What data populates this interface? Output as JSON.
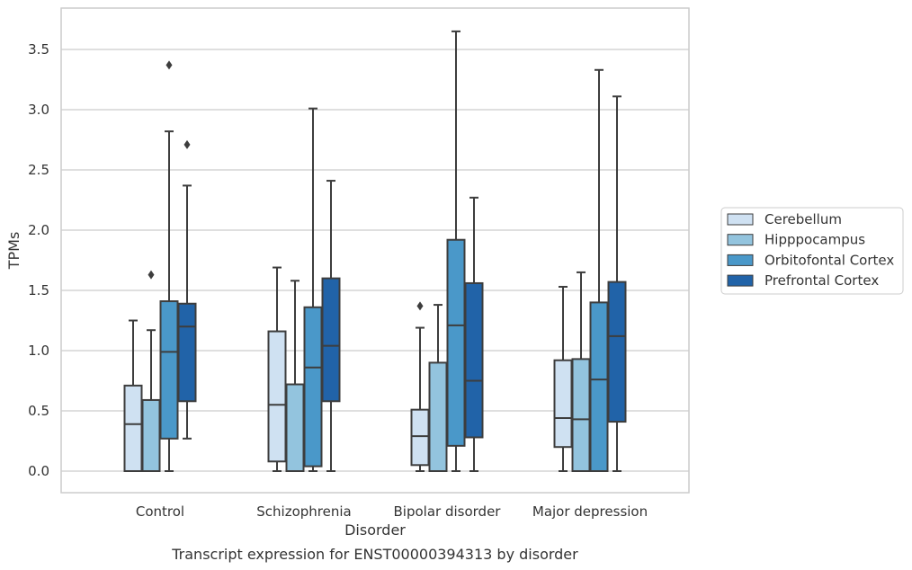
{
  "chart_data": {
    "type": "box",
    "caption": "Transcript expression for ENST00000394313 by disorder",
    "xlabel": "Disorder",
    "ylabel": "TPMs",
    "ylim": [
      -0.17,
      3.87
    ],
    "yticks": [
      0.0,
      0.5,
      1.0,
      1.5,
      2.0,
      2.5,
      3.0,
      3.5
    ],
    "ytick_labels": [
      "0.0",
      "0.5",
      "1.0",
      "1.5",
      "2.0",
      "2.5",
      "3.0",
      "3.5"
    ],
    "grid": "horizontal",
    "legend_position": "right",
    "categories": [
      "Control",
      "Schizophrenia",
      "Bipolar disorder",
      "Major depression"
    ],
    "series": [
      {
        "name": "Cerebellum",
        "color": "#cfe1f2",
        "boxes": [
          {
            "whisker_low": 0.0,
            "q1": 0.0,
            "median": 0.39,
            "q3": 0.71,
            "whisker_high": 1.25,
            "outliers": []
          },
          {
            "whisker_low": 0.0,
            "q1": 0.08,
            "median": 0.55,
            "q3": 1.16,
            "whisker_high": 1.69,
            "outliers": []
          },
          {
            "whisker_low": 0.0,
            "q1": 0.05,
            "median": 0.29,
            "q3": 0.51,
            "whisker_high": 1.19,
            "outliers": [
              1.37
            ]
          },
          {
            "whisker_low": 0.0,
            "q1": 0.2,
            "median": 0.44,
            "q3": 0.92,
            "whisker_high": 1.53,
            "outliers": []
          }
        ]
      },
      {
        "name": "Hipppocampus",
        "color": "#93c4de",
        "boxes": [
          {
            "whisker_low": 0.0,
            "q1": 0.0,
            "median": 0.0,
            "q3": 0.59,
            "whisker_high": 1.17,
            "outliers": [
              1.63
            ]
          },
          {
            "whisker_low": 0.0,
            "q1": 0.0,
            "median": 0.0,
            "q3": 0.72,
            "whisker_high": 1.58,
            "outliers": []
          },
          {
            "whisker_low": 0.0,
            "q1": 0.0,
            "median": 0.0,
            "q3": 0.9,
            "whisker_high": 1.38,
            "outliers": []
          },
          {
            "whisker_low": 0.0,
            "q1": 0.0,
            "median": 0.43,
            "q3": 0.93,
            "whisker_high": 1.65,
            "outliers": []
          }
        ]
      },
      {
        "name": "Orbitofontal Cortex",
        "color": "#4a98c9",
        "boxes": [
          {
            "whisker_low": 0.0,
            "q1": 0.27,
            "median": 0.99,
            "q3": 1.41,
            "whisker_high": 2.82,
            "outliers": [
              3.37
            ]
          },
          {
            "whisker_low": 0.0,
            "q1": 0.04,
            "median": 0.86,
            "q3": 1.36,
            "whisker_high": 3.01,
            "outliers": []
          },
          {
            "whisker_low": 0.0,
            "q1": 0.21,
            "median": 1.21,
            "q3": 1.92,
            "whisker_high": 3.65,
            "outliers": []
          },
          {
            "whisker_low": 0.0,
            "q1": 0.0,
            "median": 0.76,
            "q3": 1.4,
            "whisker_high": 3.33,
            "outliers": []
          }
        ]
      },
      {
        "name": "Prefrontal Cortex",
        "color": "#2163a8",
        "boxes": [
          {
            "whisker_low": 0.27,
            "q1": 0.58,
            "median": 1.2,
            "q3": 1.39,
            "whisker_high": 2.37,
            "outliers": [
              2.71
            ]
          },
          {
            "whisker_low": 0.0,
            "q1": 0.58,
            "median": 1.04,
            "q3": 1.6,
            "whisker_high": 2.41,
            "outliers": []
          },
          {
            "whisker_low": 0.0,
            "q1": 0.28,
            "median": 0.75,
            "q3": 1.56,
            "whisker_high": 2.27,
            "outliers": []
          },
          {
            "whisker_low": 0.0,
            "q1": 0.41,
            "median": 1.12,
            "q3": 1.57,
            "whisker_high": 3.11,
            "outliers": []
          }
        ]
      }
    ]
  }
}
